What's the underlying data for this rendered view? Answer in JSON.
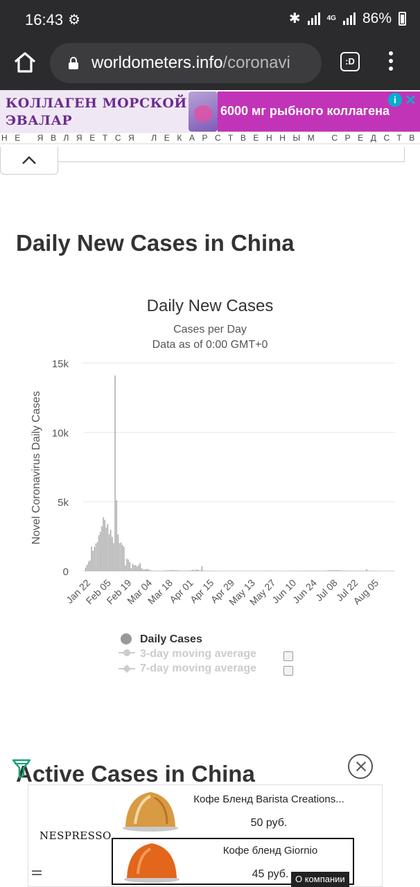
{
  "status_bar": {
    "time": "16:43",
    "network": "4G",
    "battery_percent": "86%"
  },
  "browser": {
    "url_domain": "worldometers.info",
    "url_path": "/coronavi",
    "tabs_icon_text": ":D"
  },
  "top_ad": {
    "left_line1": "КОЛЛАГЕН МОРСКОЙ",
    "left_line2": "ЭВАЛАР",
    "right_text": "6000 мг рыбного коллагена",
    "disclaimer": "НЕ ЯВЛЯЕТСЯ ЛЕКАРСТВЕННЫМ СРЕДСТВОМ",
    "brand_color": "#c234b7"
  },
  "sections": {
    "daily_title": "Daily New Cases in China",
    "active_title": "Active Cases in China"
  },
  "chart_data": {
    "type": "bar",
    "title": "Daily New Cases",
    "subtitle_line1": "Cases per Day",
    "subtitle_line2": "Data as of 0:00 GMT+0",
    "ylabel": "Novel Coronavirus Daily Cases",
    "xlabel": "",
    "ylim": [
      0,
      15000
    ],
    "y_ticks": [
      {
        "value": 0,
        "label": "0"
      },
      {
        "value": 5000,
        "label": "5k"
      },
      {
        "value": 10000,
        "label": "10k"
      },
      {
        "value": 15000,
        "label": "15k"
      }
    ],
    "x_tick_labels": [
      "Jan 22",
      "Feb 05",
      "Feb 19",
      "Mar 04",
      "Mar 18",
      "Apr 01",
      "Apr 15",
      "Apr 29",
      "May 13",
      "May 27",
      "Jun 10",
      "Jun 24",
      "Jul 08",
      "Jul 22",
      "Aug 05"
    ],
    "start_date": "2020-01-22",
    "bar_color": "#999999",
    "values": [
      259,
      457,
      688,
      769,
      1771,
      1459,
      1737,
      1981,
      2099,
      2589,
      2825,
      3235,
      3884,
      3694,
      3143,
      3385,
      2652,
      2973,
      2467,
      2015,
      14108,
      5090,
      2641,
      2008,
      2048,
      1888,
      1749,
      391,
      889,
      823,
      648,
      214,
      508,
      406,
      433,
      327,
      427,
      573,
      202,
      125,
      119,
      139,
      143,
      99,
      44,
      40,
      19,
      24,
      15,
      20,
      11,
      20,
      13,
      34,
      39,
      41,
      46,
      39,
      78,
      47,
      67,
      55,
      54,
      45,
      31,
      28,
      26,
      35,
      32,
      31,
      35,
      30,
      63,
      99,
      46,
      108,
      97,
      61,
      46,
      352,
      26,
      27,
      11,
      16,
      12,
      11,
      8,
      10,
      4,
      6,
      6,
      2,
      12,
      1,
      3,
      3,
      2,
      1,
      2,
      4,
      1,
      2,
      1,
      3,
      3,
      5,
      3,
      1,
      8,
      3,
      7,
      3,
      2,
      11,
      4,
      4,
      6,
      3,
      3,
      6,
      2,
      4,
      7,
      5,
      6,
      11,
      6,
      3,
      5,
      3,
      8,
      3,
      7,
      7,
      6,
      6,
      11,
      4,
      6,
      3,
      5,
      12,
      14,
      8,
      10,
      6,
      11,
      13,
      14,
      14,
      22,
      20,
      18,
      21,
      19,
      25,
      24,
      18,
      20,
      22,
      24,
      21,
      24,
      28,
      34,
      57,
      64,
      47,
      45,
      48,
      55,
      61,
      49,
      43,
      39,
      32,
      27,
      36,
      30,
      28,
      22,
      23,
      25,
      21,
      19,
      27,
      24,
      23,
      26,
      22,
      30,
      126,
      24,
      22,
      18,
      20,
      16,
      15,
      14,
      13
    ],
    "legend": [
      {
        "label": "Daily Cases",
        "active": true
      },
      {
        "label": "3-day moving average",
        "active": false
      },
      {
        "label": "7-day moving average",
        "active": false
      }
    ]
  },
  "bottom_ad": {
    "brand": "NESPRESSO.",
    "products": [
      {
        "name": "Кофе Бленд Barista Creations...",
        "price": "50 руб."
      },
      {
        "name": "Кофе бленд Giornio",
        "price": "45 руб."
      }
    ],
    "about": "О компании"
  }
}
